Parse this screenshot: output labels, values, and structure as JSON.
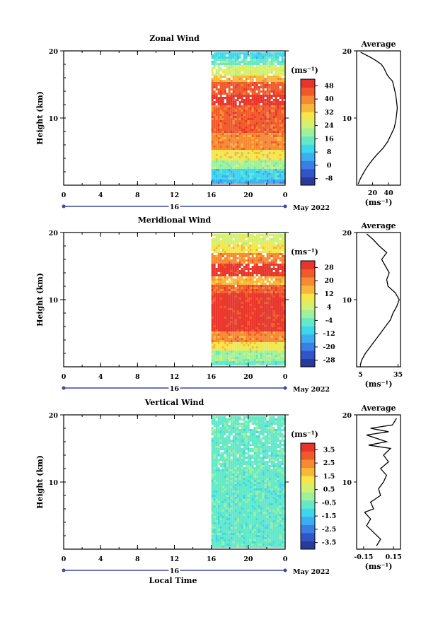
{
  "colors": {
    "scale": [
      "#2a3a9a",
      "#2f55c8",
      "#3a7ee6",
      "#3aaef0",
      "#3cd6ee",
      "#63e8c8",
      "#9ef09a",
      "#d4f070",
      "#f6e64a",
      "#f7b83a",
      "#f68a32",
      "#f05a2a",
      "#e8342a"
    ],
    "frame": "#000000",
    "range_marker": "#3a4aa0"
  },
  "chart_data": [
    {
      "type": "heatmap",
      "title": "Zonal Wind",
      "ylabel": "Height (km)",
      "xlabel": "",
      "x_ticks": [
        "0",
        "4",
        "8",
        "12",
        "16",
        "20",
        "0"
      ],
      "y_ticks": [
        "10",
        "20"
      ],
      "ylim": [
        0,
        20
      ],
      "data_local_time_start": 16,
      "date_day": "16",
      "date_month": "May 2022",
      "colorbar": {
        "unit": "(ms⁻¹)",
        "ticks": [
          "48",
          "40",
          "32",
          "24",
          "16",
          "8",
          "0",
          "-8"
        ],
        "range": [
          -12,
          52
        ]
      },
      "profile": {
        "title": "Average",
        "unit": "(ms⁻¹)",
        "x_ticks": [
          "20",
          "40"
        ],
        "y_ticks": [
          "10",
          "20"
        ],
        "xlim": [
          0,
          55
        ],
        "points": [
          [
            0.2,
            2
          ],
          [
            0.8,
            4
          ],
          [
            1.5,
            7
          ],
          [
            2.5,
            12
          ],
          [
            3.5,
            18
          ],
          [
            4.5,
            25
          ],
          [
            5.5,
            33
          ],
          [
            6.5,
            39
          ],
          [
            7.5,
            43
          ],
          [
            8.5,
            47
          ],
          [
            9.5,
            49
          ],
          [
            10.5,
            50
          ],
          [
            11.5,
            51
          ],
          [
            12.5,
            50
          ],
          [
            13.5,
            49
          ],
          [
            14.5,
            47
          ],
          [
            15.5,
            45
          ],
          [
            16,
            41
          ],
          [
            16.5,
            38
          ],
          [
            17,
            36
          ],
          [
            17.5,
            34
          ],
          [
            18,
            31
          ],
          [
            18.5,
            25
          ],
          [
            19,
            18
          ],
          [
            19.5,
            10
          ],
          [
            19.8,
            5
          ]
        ]
      },
      "field": {
        "zones": [
          [
            0,
            1,
            3
          ],
          [
            1,
            2.5,
            4
          ],
          [
            2.5,
            4,
            6
          ],
          [
            4,
            5.5,
            8
          ],
          [
            5.5,
            8,
            10
          ],
          [
            8,
            12,
            11
          ],
          [
            12,
            13.5,
            12
          ],
          [
            13.5,
            15.5,
            11
          ],
          [
            15.5,
            16.5,
            9
          ],
          [
            16.5,
            18,
            7
          ],
          [
            18,
            19,
            5
          ],
          [
            19,
            20,
            4
          ]
        ]
      }
    },
    {
      "type": "heatmap",
      "title": "Meridional Wind",
      "ylabel": "Height (km)",
      "xlabel": "",
      "x_ticks": [
        "0",
        "4",
        "8",
        "12",
        "16",
        "20",
        "0"
      ],
      "y_ticks": [
        "10",
        "20"
      ],
      "ylim": [
        0,
        20
      ],
      "data_local_time_start": 16,
      "date_day": "16",
      "date_month": "May 2022",
      "colorbar": {
        "unit": "(ms⁻¹)",
        "ticks": [
          "28",
          "20",
          "12",
          "4",
          "-4",
          "-12",
          "-20",
          "-28"
        ],
        "range": [
          -32,
          32
        ]
      },
      "profile": {
        "title": "Average",
        "unit": "(ms⁻¹)",
        "x_ticks": [
          "5",
          "35"
        ],
        "y_ticks": [
          "10",
          "20"
        ],
        "xlim": [
          2,
          37
        ],
        "points": [
          [
            0.3,
            5
          ],
          [
            1,
            6
          ],
          [
            2,
            9
          ],
          [
            3,
            13
          ],
          [
            4,
            17
          ],
          [
            5,
            21
          ],
          [
            6,
            25
          ],
          [
            7,
            29
          ],
          [
            8,
            31
          ],
          [
            9,
            34
          ],
          [
            10,
            36
          ],
          [
            11,
            33
          ],
          [
            12,
            27
          ],
          [
            13,
            26
          ],
          [
            14,
            28
          ],
          [
            15,
            25
          ],
          [
            16,
            22
          ],
          [
            17,
            26
          ],
          [
            18,
            20
          ],
          [
            19,
            15
          ],
          [
            19.8,
            10
          ]
        ]
      },
      "field": {
        "zones": [
          [
            0,
            1,
            5
          ],
          [
            1,
            2.5,
            6
          ],
          [
            2.5,
            4,
            8
          ],
          [
            4,
            5.5,
            10
          ],
          [
            5.5,
            11,
            12
          ],
          [
            11,
            12.5,
            11
          ],
          [
            12.5,
            13.5,
            9
          ],
          [
            13.5,
            15.5,
            12
          ],
          [
            15.5,
            17,
            10
          ],
          [
            17,
            18.5,
            8
          ],
          [
            18.5,
            20,
            7
          ]
        ]
      }
    },
    {
      "type": "heatmap",
      "title": "Vertical Wind",
      "ylabel": "Height (km)",
      "xlabel": "Local Time",
      "x_ticks": [
        "0",
        "4",
        "8",
        "12",
        "16",
        "20",
        "0"
      ],
      "y_ticks": [
        "10",
        "20"
      ],
      "ylim": [
        0,
        20
      ],
      "data_local_time_start": 16,
      "date_day": "16",
      "date_month": "May 2022",
      "colorbar": {
        "unit": "(ms⁻¹)",
        "ticks": [
          "3.5",
          "2.5",
          "1.5",
          "0.5",
          "-0.5",
          "-1.5",
          "-2.5",
          "-3.5"
        ],
        "range": [
          -4,
          4
        ]
      },
      "profile": {
        "title": "Average",
        "unit": "(ms⁻¹)",
        "x_ticks": [
          "-0.15",
          "0.15"
        ],
        "y_ticks": [
          "10",
          "20"
        ],
        "xlim": [
          -0.22,
          0.22
        ],
        "points": [
          [
            0.5,
            -0.02
          ],
          [
            1.5,
            0.02
          ],
          [
            2.5,
            -0.05
          ],
          [
            3.5,
            -0.12
          ],
          [
            4.5,
            -0.08
          ],
          [
            5.5,
            -0.14
          ],
          [
            6,
            -0.05
          ],
          [
            7,
            -0.08
          ],
          [
            8,
            0.02
          ],
          [
            9,
            0.0
          ],
          [
            10,
            0.05
          ],
          [
            11,
            0.08
          ],
          [
            12,
            0.02
          ],
          [
            13,
            0.1
          ],
          [
            14,
            0.05
          ],
          [
            15,
            0.12
          ],
          [
            15.5,
            -0.1
          ],
          [
            16,
            0.08
          ],
          [
            17,
            -0.12
          ],
          [
            17.5,
            0.1
          ],
          [
            18,
            -0.08
          ],
          [
            18.5,
            0.14
          ],
          [
            19.5,
            0.18
          ]
        ]
      },
      "field": {
        "zones": [
          [
            0,
            20,
            5
          ]
        ]
      }
    }
  ]
}
